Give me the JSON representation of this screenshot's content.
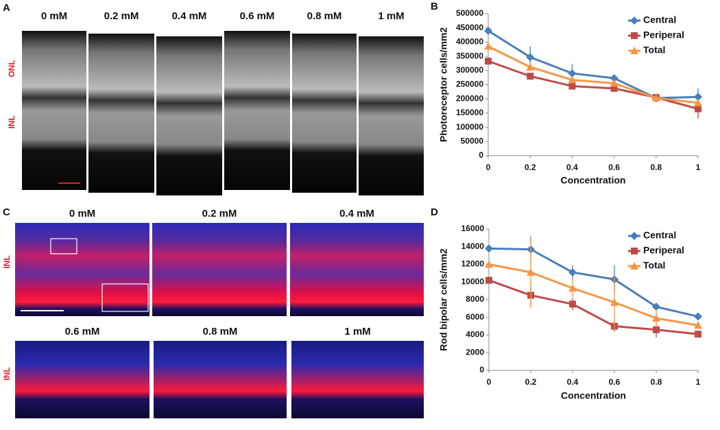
{
  "panels": {
    "A": {
      "label": "A",
      "conditions": [
        "0 mM",
        "0.2 mM",
        "0.4 mM",
        "0.6 mM",
        "0.8 mM",
        "1 mM"
      ],
      "layer_labels": [
        "ONL",
        "INL"
      ]
    },
    "C": {
      "label": "C",
      "conditions": [
        "0 mM",
        "0.2 mM",
        "0.4 mM",
        "0.6 mM",
        "0.8 mM",
        "1 mM"
      ],
      "layer_labels": [
        "INL",
        "INL"
      ]
    }
  },
  "chart_data": [
    {
      "type": "line",
      "panel": "B",
      "x_label": "Concentration",
      "y_label": "Photoreceptor cells/mm2",
      "x": [
        0,
        0.2,
        0.4,
        0.6,
        0.8,
        1
      ],
      "xlim": [
        0,
        1
      ],
      "xticks": [
        0,
        0.2,
        0.4,
        0.6,
        0.8,
        1
      ],
      "ylim": [
        0,
        500000
      ],
      "yticks": [
        0,
        50000,
        100000,
        150000,
        200000,
        250000,
        300000,
        350000,
        400000,
        450000,
        500000
      ],
      "legend": "upper right",
      "series": [
        {
          "name": "Central",
          "color": "#4a7ebb",
          "marker": "diamond",
          "values": [
            440000,
            347000,
            290000,
            273000,
            203000,
            207000
          ],
          "errors": [
            null,
            38000,
            33000,
            5000,
            15000,
            30000
          ]
        },
        {
          "name": "Periperal",
          "color": "#be4b48",
          "marker": "square",
          "values": [
            333000,
            280000,
            245000,
            237000,
            205000,
            165000
          ],
          "errors": [
            null,
            8000,
            6000,
            5000,
            8000,
            35000
          ]
        },
        {
          "name": "Total",
          "color": "#f79646",
          "marker": "triangle",
          "values": [
            385000,
            312000,
            267000,
            255000,
            203000,
            186000
          ],
          "errors": [
            null,
            null,
            null,
            null,
            null,
            null
          ]
        }
      ]
    },
    {
      "type": "line",
      "panel": "D",
      "x_label": "Concentration",
      "y_label": "Rod bipolar cells/mm2",
      "x": [
        0,
        0.2,
        0.4,
        0.6,
        0.8,
        1
      ],
      "xlim": [
        0,
        1
      ],
      "xticks": [
        0,
        0.2,
        0.4,
        0.6,
        0.8,
        1
      ],
      "ylim": [
        0,
        16000
      ],
      "yticks": [
        0,
        2000,
        4000,
        6000,
        8000,
        10000,
        12000,
        14000,
        16000
      ],
      "legend": "upper right",
      "series": [
        {
          "name": "Central",
          "color": "#4a7ebb",
          "marker": "diamond",
          "values": [
            13800,
            13700,
            11100,
            10300,
            7200,
            6100
          ],
          "errors": [
            null,
            1500,
            800,
            1600,
            200,
            400
          ]
        },
        {
          "name": "Periperal",
          "color": "#be4b48",
          "marker": "square",
          "values": [
            10200,
            8500,
            7500,
            5000,
            4600,
            4100
          ],
          "errors": [
            null,
            1300,
            700,
            600,
            900,
            200
          ]
        },
        {
          "name": "Total",
          "color": "#f79646",
          "marker": "triangle",
          "values": [
            12000,
            11100,
            9300,
            7700,
            5900,
            5100
          ],
          "errors": [
            null,
            4000,
            1000,
            3000,
            1000,
            300
          ]
        }
      ]
    }
  ]
}
